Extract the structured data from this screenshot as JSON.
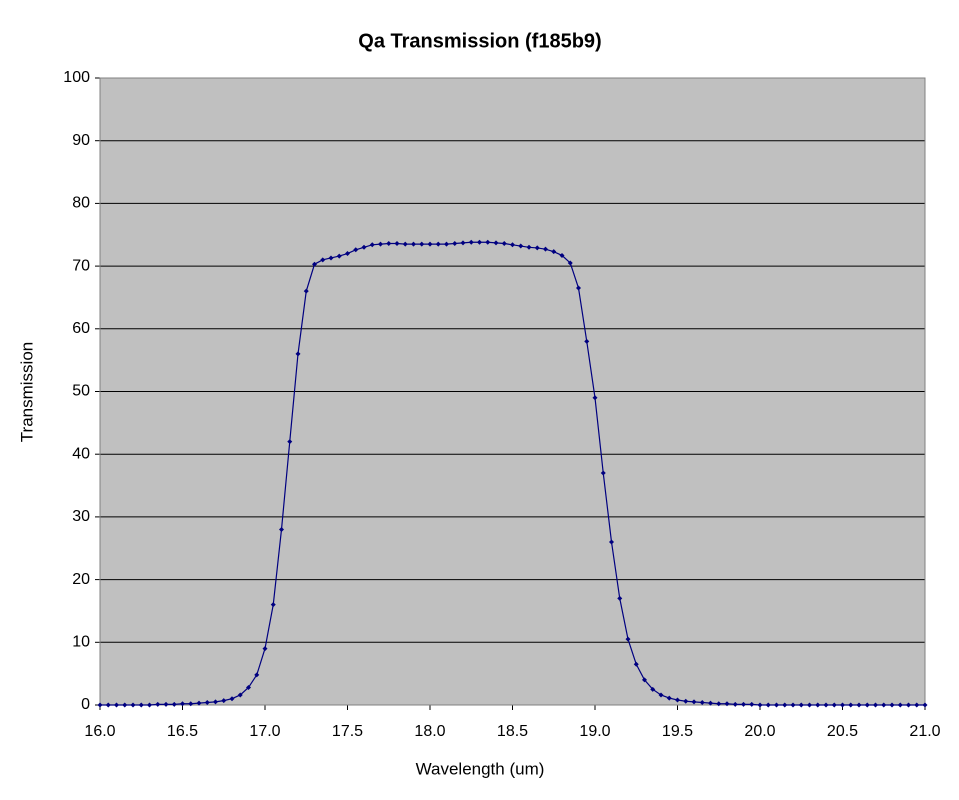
{
  "chart_data": {
    "type": "line",
    "title": "Qa Transmission (f185b9)",
    "x_label": "Wavelength (um)",
    "y_label": "Transmission",
    "x": [
      16.0,
      16.05,
      16.1,
      16.15,
      16.2,
      16.25,
      16.3,
      16.35,
      16.4,
      16.45,
      16.5,
      16.55,
      16.6,
      16.65,
      16.7,
      16.75,
      16.8,
      16.85,
      16.9,
      16.95,
      17.0,
      17.05,
      17.1,
      17.15,
      17.2,
      17.25,
      17.3,
      17.35,
      17.4,
      17.45,
      17.5,
      17.55,
      17.6,
      17.65,
      17.7,
      17.75,
      17.8,
      17.85,
      17.9,
      17.95,
      18.0,
      18.05,
      18.1,
      18.15,
      18.2,
      18.25,
      18.3,
      18.35,
      18.4,
      18.45,
      18.5,
      18.55,
      18.6,
      18.65,
      18.7,
      18.75,
      18.8,
      18.85,
      18.9,
      18.95,
      19.0,
      19.05,
      19.1,
      19.15,
      19.2,
      19.25,
      19.3,
      19.35,
      19.4,
      19.45,
      19.5,
      19.55,
      19.6,
      19.65,
      19.7,
      19.75,
      19.8,
      19.85,
      19.9,
      19.95,
      20.0,
      20.05,
      20.1,
      20.15,
      20.2,
      20.25,
      20.3,
      20.35,
      20.4,
      20.45,
      20.5,
      20.55,
      20.6,
      20.65,
      20.7,
      20.75,
      20.8,
      20.85,
      20.9,
      20.95,
      21.0
    ],
    "series": [
      {
        "name": "Transmission",
        "color": "#000080",
        "values": [
          0,
          0,
          0,
          0,
          0,
          0,
          0,
          0.1,
          0.1,
          0.1,
          0.2,
          0.2,
          0.3,
          0.4,
          0.5,
          0.7,
          1.0,
          1.6,
          2.8,
          4.8,
          9,
          16,
          28,
          42,
          56,
          66,
          70.3,
          71,
          71.3,
          71.6,
          72,
          72.6,
          73,
          73.4,
          73.5,
          73.6,
          73.6,
          73.5,
          73.5,
          73.5,
          73.5,
          73.5,
          73.5,
          73.6,
          73.7,
          73.8,
          73.8,
          73.8,
          73.7,
          73.6,
          73.4,
          73.2,
          73,
          72.9,
          72.7,
          72.3,
          71.7,
          70.5,
          66.5,
          58,
          49,
          37,
          26,
          17,
          10.5,
          6.5,
          4,
          2.5,
          1.6,
          1.1,
          0.8,
          0.6,
          0.5,
          0.4,
          0.3,
          0.2,
          0.2,
          0.1,
          0.1,
          0.1,
          0,
          0,
          0,
          0,
          0,
          0,
          0,
          0,
          0,
          0,
          0,
          0,
          0,
          0,
          0,
          0,
          0,
          0,
          0,
          0,
          0
        ]
      }
    ],
    "xlim": [
      16,
      21
    ],
    "ylim": [
      0,
      100
    ],
    "xticks": [
      {
        "value": 16,
        "label": "16.0"
      },
      {
        "value": 16.5,
        "label": "16.5"
      },
      {
        "value": 17,
        "label": "17.0"
      },
      {
        "value": 17.5,
        "label": "17.5"
      },
      {
        "value": 18,
        "label": "18.0"
      },
      {
        "value": 18.5,
        "label": "18.5"
      },
      {
        "value": 19,
        "label": "19.0"
      },
      {
        "value": 19.5,
        "label": "19.5"
      },
      {
        "value": 20,
        "label": "20.0"
      },
      {
        "value": 20.5,
        "label": "20.5"
      },
      {
        "value": 21,
        "label": "21.0"
      }
    ],
    "yticks": [
      0,
      10,
      20,
      30,
      40,
      50,
      60,
      70,
      80,
      90,
      100
    ],
    "grid": true,
    "plot_background": "#c0c0c0"
  }
}
